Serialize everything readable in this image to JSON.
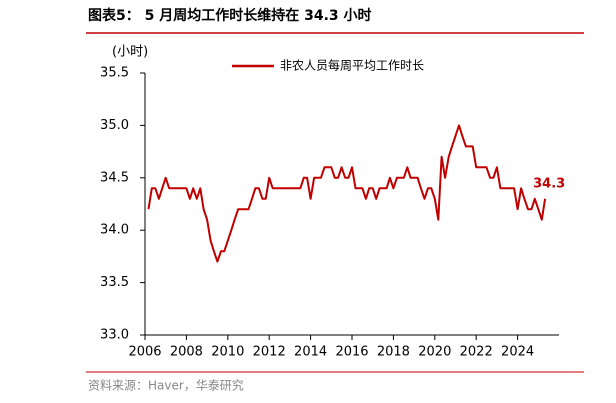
{
  "chart_data": {
    "type": "line",
    "title": "图表5：  5 月周均工作时长维持在 34.3 小时",
    "y_axis_label": "(小时)",
    "source": "资料来源：Haver，华泰研究",
    "x": [
      2006.17,
      2006.33,
      2006.5,
      2006.67,
      2006.83,
      2007,
      2007.17,
      2007.33,
      2007.5,
      2007.67,
      2007.83,
      2008,
      2008.17,
      2008.33,
      2008.5,
      2008.67,
      2008.83,
      2009,
      2009.17,
      2009.33,
      2009.5,
      2009.67,
      2009.83,
      2010,
      2010.17,
      2010.33,
      2010.5,
      2010.67,
      2010.83,
      2011,
      2011.17,
      2011.33,
      2011.5,
      2011.67,
      2011.83,
      2012,
      2012.17,
      2012.33,
      2012.5,
      2012.67,
      2012.83,
      2013,
      2013.17,
      2013.33,
      2013.5,
      2013.67,
      2013.83,
      2014,
      2014.17,
      2014.33,
      2014.5,
      2014.67,
      2014.83,
      2015,
      2015.17,
      2015.33,
      2015.5,
      2015.67,
      2015.83,
      2016,
      2016.17,
      2016.33,
      2016.5,
      2016.67,
      2016.83,
      2017,
      2017.17,
      2017.33,
      2017.5,
      2017.67,
      2017.83,
      2018,
      2018.17,
      2018.33,
      2018.5,
      2018.67,
      2018.83,
      2019,
      2019.17,
      2019.33,
      2019.5,
      2019.67,
      2019.83,
      2020,
      2020.17,
      2020.33,
      2020.5,
      2020.67,
      2020.83,
      2021,
      2021.17,
      2021.33,
      2021.5,
      2021.67,
      2021.83,
      2022,
      2022.17,
      2022.33,
      2022.5,
      2022.67,
      2022.83,
      2023,
      2023.17,
      2023.33,
      2023.5,
      2023.67,
      2023.83,
      2024,
      2024.17,
      2024.33,
      2024.5,
      2024.67,
      2024.83,
      2025,
      2025.17,
      2025.33
    ],
    "series": [
      {
        "name": "非农人员每周平均工作时长",
        "color": "#c00000",
        "values": [
          34.2,
          34.4,
          34.4,
          34.3,
          34.4,
          34.5,
          34.4,
          34.4,
          34.4,
          34.4,
          34.4,
          34.4,
          34.3,
          34.4,
          34.3,
          34.4,
          34.2,
          34.1,
          33.9,
          33.8,
          33.7,
          33.8,
          33.8,
          33.9,
          34.0,
          34.1,
          34.2,
          34.2,
          34.2,
          34.2,
          34.3,
          34.4,
          34.4,
          34.3,
          34.3,
          34.5,
          34.4,
          34.4,
          34.4,
          34.4,
          34.4,
          34.4,
          34.4,
          34.4,
          34.4,
          34.5,
          34.5,
          34.3,
          34.5,
          34.5,
          34.5,
          34.6,
          34.6,
          34.6,
          34.5,
          34.5,
          34.6,
          34.5,
          34.5,
          34.6,
          34.4,
          34.4,
          34.4,
          34.3,
          34.4,
          34.4,
          34.3,
          34.4,
          34.4,
          34.4,
          34.5,
          34.4,
          34.5,
          34.5,
          34.5,
          34.6,
          34.5,
          34.5,
          34.5,
          34.4,
          34.3,
          34.4,
          34.4,
          34.3,
          34.1,
          34.7,
          34.5,
          34.7,
          34.8,
          34.9,
          35.0,
          34.9,
          34.8,
          34.8,
          34.8,
          34.6,
          34.6,
          34.6,
          34.6,
          34.5,
          34.5,
          34.6,
          34.4,
          34.4,
          34.4,
          34.4,
          34.4,
          34.2,
          34.4,
          34.3,
          34.2,
          34.2,
          34.3,
          34.2,
          34.1,
          34.3
        ]
      }
    ],
    "end_label": "34.3",
    "xlim": [
      2006,
      2026
    ],
    "xticks": [
      2006,
      2008,
      2010,
      2012,
      2014,
      2016,
      2018,
      2020,
      2022,
      2024
    ],
    "ylim": [
      33.0,
      35.5
    ],
    "yticks": [
      {
        "value": 33.0,
        "label": "33.0"
      },
      33.5,
      {
        "value": 34.0,
        "label": "34.0"
      },
      34.5,
      {
        "value": 35.0,
        "label": "35.0"
      },
      35.5
    ],
    "grid": false,
    "legend": "top"
  }
}
